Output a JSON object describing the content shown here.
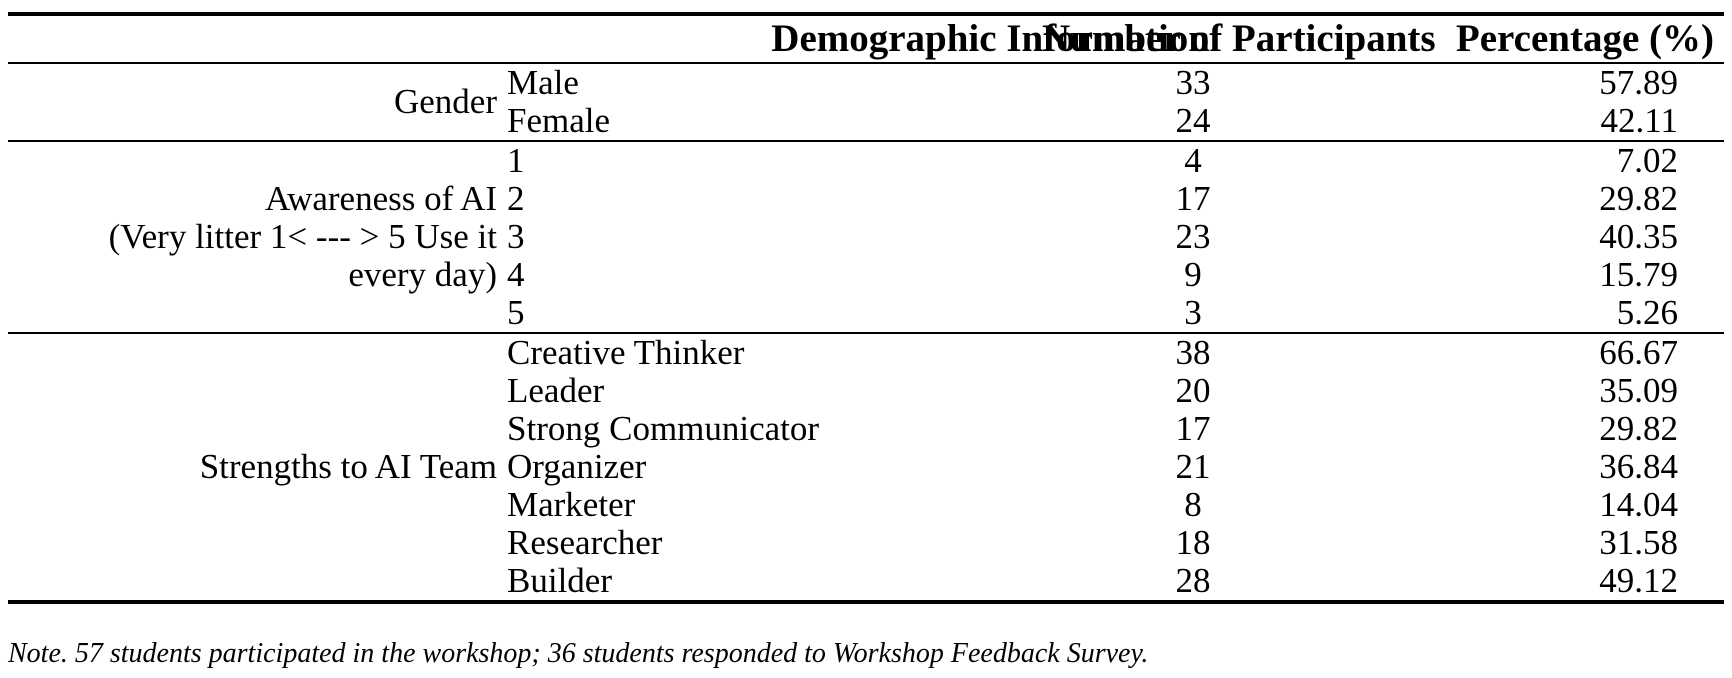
{
  "table": {
    "headers": {
      "demographic": "Demographic Information",
      "number": "Number of Participants",
      "percentage": "Percentage (%)"
    },
    "groups": [
      {
        "category_lines": [
          "Gender"
        ],
        "rows": [
          {
            "label": "Male",
            "number": "33",
            "percentage": "57.89"
          },
          {
            "label": "Female",
            "number": "24",
            "percentage": "42.11"
          }
        ]
      },
      {
        "category_lines": [
          "Awareness of AI",
          "(Very litter 1< --- > 5 Use it",
          "every day)"
        ],
        "rows": [
          {
            "label": "1",
            "number": "4",
            "percentage": "7.02"
          },
          {
            "label": "2",
            "number": "17",
            "percentage": "29.82"
          },
          {
            "label": "3",
            "number": "23",
            "percentage": "40.35"
          },
          {
            "label": "4",
            "number": "9",
            "percentage": "15.79"
          },
          {
            "label": "5",
            "number": "3",
            "percentage": "5.26"
          }
        ]
      },
      {
        "category_lines": [
          "Strengths to AI Team"
        ],
        "rows": [
          {
            "label": "Creative Thinker",
            "number": "38",
            "percentage": "66.67"
          },
          {
            "label": "Leader",
            "number": "20",
            "percentage": "35.09"
          },
          {
            "label": "Strong Communicator",
            "number": "17",
            "percentage": "29.82"
          },
          {
            "label": "Organizer",
            "number": "21",
            "percentage": "36.84"
          },
          {
            "label": "Marketer",
            "number": "8",
            "percentage": "14.04"
          },
          {
            "label": "Researcher",
            "number": "18",
            "percentage": "31.58"
          },
          {
            "label": "Builder",
            "number": "28",
            "percentage": "49.12"
          }
        ]
      }
    ]
  },
  "note": "Note. 57 students participated in the workshop; 36 students responded to Workshop Feedback Survey."
}
